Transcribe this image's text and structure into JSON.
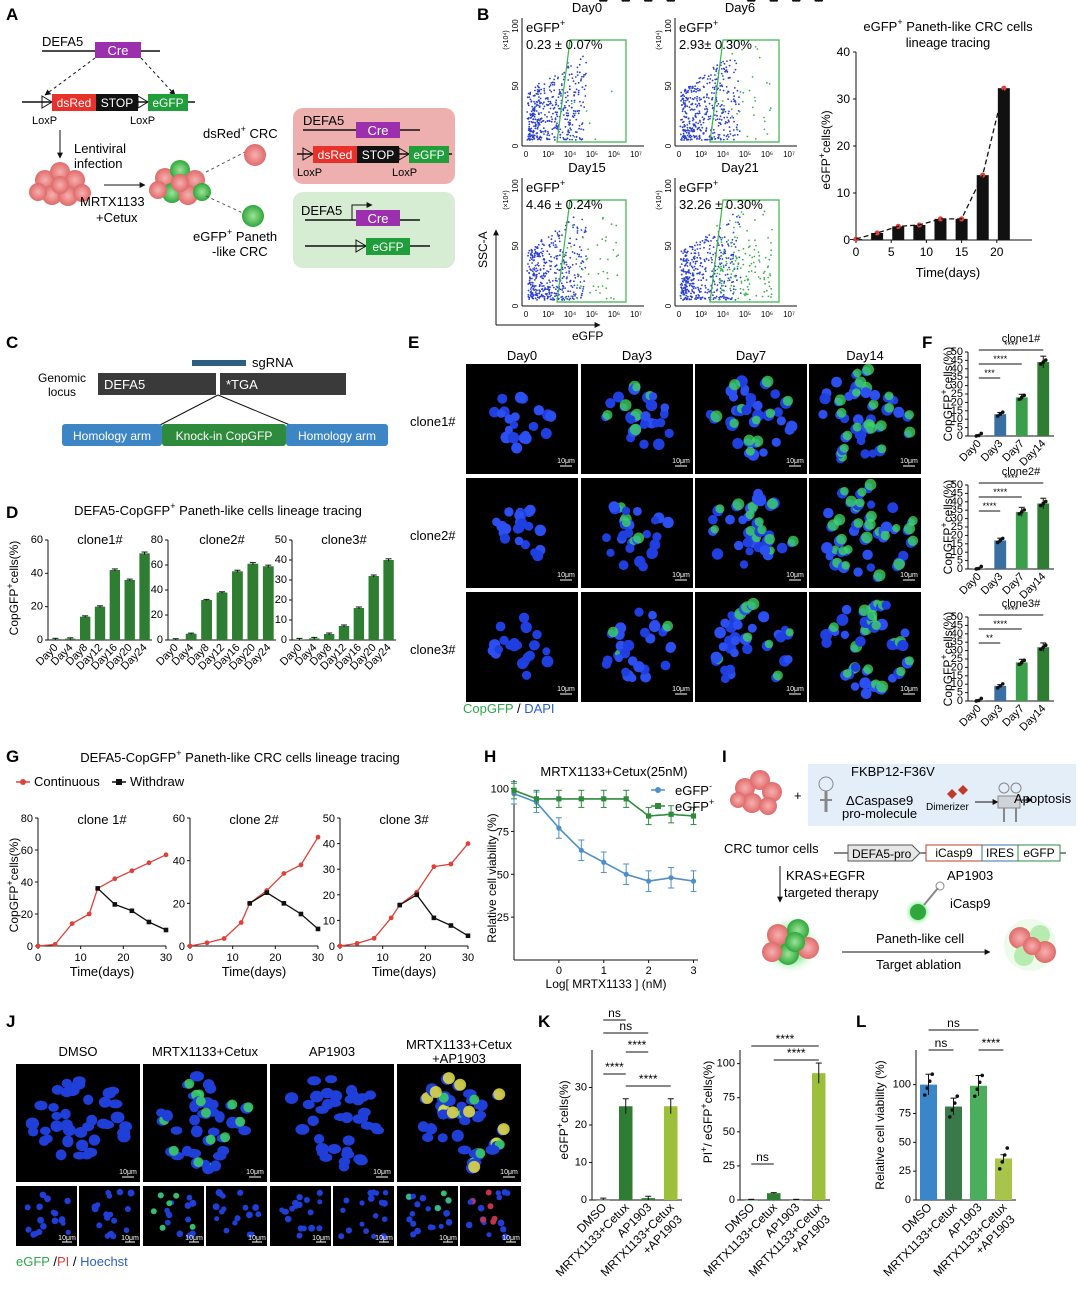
{
  "panels": {
    "A": "A",
    "B": "B",
    "C": "C",
    "D": "D",
    "E": "E",
    "F": "F",
    "G": "G",
    "H": "H",
    "I": "I",
    "J": "J",
    "K": "K",
    "L": "L"
  },
  "a": {
    "defa5": "DEFA5",
    "cre": "Cre",
    "dsred": "dsRed",
    "stop": "STOP",
    "egfp": "eGFP",
    "loxp": "LoxP",
    "lentiviral": "Lentiviral",
    "infection": "infection",
    "mrtx": "MRTX1133",
    "cetux": "+Cetux",
    "dsred_crc_a": "dsRed",
    "dsred_crc_sup": "+",
    "dsred_crc_b": " CRC",
    "egfp_paneth_a": "eGFP",
    "egfp_paneth_sup": "+",
    "egfp_paneth_b": " Paneth",
    "like_crc": "-like CRC",
    "box_red_defa5": "DEFA5",
    "box_green_defa5": "DEFA5"
  },
  "b": {
    "axis_y": "SSC-A",
    "axis_x": "eGFP",
    "scale": "(×10⁴)",
    "plots": [
      {
        "day": "Day0",
        "label": "eGFP",
        "sup": "+",
        "value": "0.23 ± 0.07%"
      },
      {
        "day": "Day6",
        "label": "eGFP",
        "sup": "+",
        "value": "2.93± 0.30%"
      },
      {
        "day": "Day15",
        "label": "eGFP",
        "sup": "+",
        "value": "4.46 ± 0.24%"
      },
      {
        "day": "Day21",
        "label": "eGFP",
        "sup": "+",
        "value": "32.26 ± 0.30%"
      }
    ],
    "yticks": [
      "0",
      "50",
      "100"
    ],
    "xticks": [
      "0",
      "10³",
      "10⁴",
      "10⁵",
      "10⁶",
      "10⁷"
    ],
    "chart_title_a": "eGFP",
    "chart_title_sup": "+",
    "chart_title_b": " Paneth-like CRC cells",
    "chart_title_c": "lineage tracing",
    "ylabel_a": "eGFP",
    "ylabel_sup": "+",
    "ylabel_b": "cells(%)",
    "xlabel": "Time(days)"
  },
  "c": {
    "sgrna": "sgRNA",
    "genomic": "Genomic",
    "locus": "locus",
    "defa5": "DEFA5",
    "tga": "*TGA",
    "arm": "Homology arm",
    "knockin": "Knock-in CopGFP"
  },
  "d": {
    "title_a": "DEFA5-CopGFP",
    "title_sup": "+",
    "title_b": " Paneth-like cells lineage tracing",
    "ylabel_a": "CopGFP",
    "ylabel_sup": "+",
    "ylabel_b": "cells(%)",
    "clones": [
      "clone1#",
      "clone2#",
      "clone3#"
    ]
  },
  "e": {
    "days": [
      "Day0",
      "Day3",
      "Day7",
      "Day14"
    ],
    "clones": [
      "clone1#",
      "clone2#",
      "clone3#"
    ],
    "scale": "10μm",
    "legend_a": "CopGFP",
    "legend_sep": " / ",
    "legend_b": "DAPI"
  },
  "f": {
    "ylabel_a": "CopGFP",
    "ylabel_sup": "+",
    "ylabel_b": "cells(%)"
  },
  "g": {
    "title_a": "DEFA5-CopGFP",
    "title_sup": "+",
    "title_b": " Paneth-like CRC cells lineage tracing",
    "legend_cont": "Continuous",
    "legend_with": "Withdraw",
    "ylabel_a": "CopGFP",
    "ylabel_sup": "+",
    "ylabel_b": "cells(%)",
    "xlabel": "Time(days)"
  },
  "h": {
    "title": "MRTX1133+Cetux(25nM)",
    "ylabel": "Relative cell viability (%)",
    "xlabel": "Log[ MRTX1133 ] (nM)",
    "legend_minus": "eGFP",
    "legend_minus_sup": "-",
    "legend_plus": "eGFP",
    "legend_plus_sup": "+"
  },
  "i": {
    "fkbp": "FKBP12-F36V",
    "casp": "ΔCaspase9",
    "promol": "pro-molecule",
    "dimerizer": "Dimerizer",
    "apoptosis": "Apoptosis",
    "crc": "CRC tumor cells",
    "defa5pro": "DEFA5-pro",
    "icasp9": "iCasp9",
    "ires": "IRES",
    "egfp": "eGFP",
    "kras": "KRAS+EGFR",
    "targeted": "targeted therapy",
    "ap1903": "AP1903",
    "icasp9b": "iCasp9",
    "paneth": "Paneth-like cell",
    "ablation": "Target ablation"
  },
  "j": {
    "conds": [
      "DMSO",
      "MRTX1133+Cetux",
      "AP1903"
    ],
    "cond4a": "MRTX1133+Cetux",
    "cond4b": "+AP1903",
    "scale": "10μm",
    "legend_a": "eGFP",
    "legend_sep1": " /",
    "legend_b": "PI",
    "legend_sep2": " /",
    "legend_c": " Hoechst"
  },
  "k": {
    "ylabel1_a": "eGFP",
    "ylabel1_sup": "+",
    "ylabel1_b": "cells(%)",
    "ylabel2_a": "PI",
    "ylabel2_sup1": "+",
    "ylabel2_b": "/ eGFP",
    "ylabel2_sup2": "+",
    "ylabel2_c": "cells(%)",
    "xcats": [
      "DMSO",
      "MRTX1133+Cetux",
      "AP1903",
      "MRTX1133+Cetux"
    ],
    "xcat4b": "+AP1903"
  },
  "l": {
    "ylabel": "Relative cell viability (%)",
    "xcats": [
      "DMSO",
      "MRTX1133+Cetux",
      "AP1903",
      "MRTX1133+Cetux"
    ],
    "xcat4b": "+AP1903"
  },
  "colors": {
    "red": "#e0403a",
    "green": "#2e7d32",
    "blue": "#3a7dbf",
    "lime": "#9cbf3c",
    "black": "#111111",
    "purple": "#9b2fae",
    "dsred": "#e8312a"
  },
  "chart_data": [
    {
      "id": "B",
      "type": "bar",
      "title": "eGFP+ Paneth-like CRC cells lineage tracing",
      "xlabel": "Time(days)",
      "ylabel": "eGFP+cells(%)",
      "x": [
        0,
        3,
        6,
        9,
        12,
        15,
        18,
        21
      ],
      "values": [
        0.2,
        1.5,
        2.9,
        3.2,
        4.5,
        4.5,
        13.8,
        32.3
      ],
      "xlim": [
        0,
        25
      ],
      "ylim": [
        0,
        40
      ],
      "xticks": [
        0,
        5,
        10,
        15,
        20
      ],
      "yticks": [
        0,
        10,
        20,
        30,
        40
      ],
      "trend": "dashed"
    },
    {
      "id": "D1",
      "type": "bar",
      "title": "clone1#",
      "categories": [
        "Day0",
        "Day4",
        "Day8",
        "Day12",
        "Day16",
        "Day20",
        "Day24"
      ],
      "values": [
        0.5,
        0.8,
        14,
        20,
        42,
        36,
        52
      ],
      "ylim": [
        0,
        60
      ],
      "yticks": [
        0,
        20,
        40,
        60
      ]
    },
    {
      "id": "D2",
      "type": "bar",
      "title": "clone2#",
      "categories": [
        "Day0",
        "Day4",
        "Day8",
        "Day12",
        "Day16",
        "Day20",
        "Day24"
      ],
      "values": [
        0.5,
        5,
        32,
        38,
        55,
        61,
        59
      ],
      "ylim": [
        0,
        80
      ],
      "yticks": [
        0,
        20,
        40,
        60,
        80
      ]
    },
    {
      "id": "D3",
      "type": "bar",
      "title": "clone3#",
      "categories": [
        "Day0",
        "Day4",
        "Day8",
        "Day12",
        "Day16",
        "Day20",
        "Day24"
      ],
      "values": [
        0.3,
        0.8,
        3,
        7,
        16,
        32,
        40
      ],
      "ylim": [
        0,
        50
      ],
      "yticks": [
        0,
        10,
        20,
        30,
        40,
        50
      ]
    },
    {
      "id": "F1",
      "type": "bar",
      "title": "clone1#",
      "categories": [
        "Day0",
        "Day3",
        "Day7",
        "Day14"
      ],
      "values": [
        0.3,
        13,
        23,
        44
      ],
      "colors": [
        "#3a6fa3",
        "#3a6fa3",
        "#3a9e4a",
        "#2e7d32"
      ],
      "ylim": [
        0,
        50
      ],
      "yticks": [
        0,
        5,
        10,
        15,
        20,
        25,
        30,
        35,
        40,
        45,
        50
      ],
      "significance": [
        {
          "a": 0,
          "b": 3,
          "label": "****"
        },
        {
          "a": 0,
          "b": 2,
          "label": "****"
        },
        {
          "a": 0,
          "b": 1,
          "label": "***"
        }
      ]
    },
    {
      "id": "F2",
      "type": "bar",
      "title": "clone2#",
      "categories": [
        "Day0",
        "Day3",
        "Day7",
        "Day14"
      ],
      "values": [
        0.3,
        17,
        34,
        39
      ],
      "colors": [
        "#3a6fa3",
        "#3a6fa3",
        "#3a9e4a",
        "#2e7d32"
      ],
      "ylim": [
        0,
        50
      ],
      "yticks": [
        0,
        5,
        10,
        15,
        20,
        25,
        30,
        35,
        40,
        45,
        50
      ],
      "significance": [
        {
          "a": 0,
          "b": 3,
          "label": "****"
        },
        {
          "a": 0,
          "b": 2,
          "label": "****"
        },
        {
          "a": 0,
          "b": 1,
          "label": "****"
        }
      ]
    },
    {
      "id": "F3",
      "type": "bar",
      "title": "clone3#",
      "categories": [
        "Day0",
        "Day3",
        "Day7",
        "Day14"
      ],
      "values": [
        0.3,
        9,
        23,
        32
      ],
      "colors": [
        "#3a6fa3",
        "#3a6fa3",
        "#3a9e4a",
        "#2e7d32"
      ],
      "ylim": [
        0,
        50
      ],
      "yticks": [
        0,
        5,
        10,
        15,
        20,
        25,
        30,
        35,
        40,
        45,
        50
      ],
      "significance": [
        {
          "a": 0,
          "b": 3,
          "label": "****"
        },
        {
          "a": 0,
          "b": 2,
          "label": "****"
        },
        {
          "a": 0,
          "b": 1,
          "label": "**"
        }
      ]
    },
    {
      "id": "G1",
      "type": "line",
      "title": "clone 1#",
      "xlim": [
        0,
        30
      ],
      "ylim": [
        0,
        80
      ],
      "xticks": [
        0,
        10,
        20,
        30
      ],
      "yticks": [
        0,
        20,
        40,
        60,
        80
      ],
      "series": [
        {
          "name": "Continuous",
          "x": [
            0,
            4,
            8,
            12,
            14,
            18,
            22,
            26,
            30
          ],
          "y": [
            0,
            1,
            14,
            20,
            36,
            42,
            47,
            52,
            57
          ]
        },
        {
          "name": "Withdraw",
          "x": [
            14,
            18,
            22,
            26,
            30
          ],
          "y": [
            36,
            26,
            22,
            15,
            10
          ]
        }
      ]
    },
    {
      "id": "G2",
      "type": "line",
      "title": "clone 2#",
      "xlim": [
        0,
        30
      ],
      "ylim": [
        0,
        60
      ],
      "xticks": [
        0,
        10,
        20,
        30
      ],
      "yticks": [
        0,
        20,
        40,
        60
      ],
      "series": [
        {
          "name": "Continuous",
          "x": [
            0,
            4,
            8,
            12,
            14,
            18,
            22,
            26,
            30
          ],
          "y": [
            0,
            1.5,
            3.5,
            11,
            20,
            26,
            34,
            38,
            51
          ]
        },
        {
          "name": "Withdraw",
          "x": [
            14,
            18,
            22,
            26,
            30
          ],
          "y": [
            20,
            25,
            20,
            15,
            8
          ]
        }
      ]
    },
    {
      "id": "G3",
      "type": "line",
      "title": "clone 3#",
      "xlim": [
        0,
        30
      ],
      "ylim": [
        0,
        50
      ],
      "xticks": [
        0,
        10,
        20,
        30
      ],
      "yticks": [
        0,
        10,
        20,
        30,
        40,
        50
      ],
      "series": [
        {
          "name": "Continuous",
          "x": [
            0,
            4,
            8,
            12,
            14,
            18,
            22,
            26,
            30
          ],
          "y": [
            0,
            1,
            3,
            11,
            16,
            21,
            31,
            32,
            40
          ]
        },
        {
          "name": "Withdraw",
          "x": [
            14,
            18,
            22,
            26,
            30
          ],
          "y": [
            16,
            20,
            11,
            8,
            4
          ]
        }
      ]
    },
    {
      "id": "H",
      "type": "line",
      "title": "MRTX1133+Cetux(25nM)",
      "xlabel": "Log[ MRTX1133 ] (nM)",
      "ylabel": "Relative cell viability (%)",
      "xlim": [
        -1,
        3.1
      ],
      "ylim": [
        0,
        105
      ],
      "xticks": [
        0,
        1,
        2,
        3
      ],
      "yticks": [
        25,
        50,
        75,
        100
      ],
      "series": [
        {
          "name": "eGFP-",
          "x": [
            -1,
            -0.5,
            0,
            0.5,
            1,
            1.5,
            2,
            2.5,
            3
          ],
          "y": [
            97,
            92,
            77,
            64,
            57,
            50,
            46,
            48,
            46
          ]
        },
        {
          "name": "eGFP+",
          "x": [
            -1,
            -0.5,
            0,
            0.5,
            1,
            1.5,
            2,
            2.5,
            3
          ],
          "y": [
            99,
            94,
            94,
            94,
            94,
            94,
            84,
            85,
            84
          ]
        }
      ]
    },
    {
      "id": "K1",
      "type": "bar",
      "categories": [
        "DMSO",
        "MRTX1133+Cetux",
        "AP1903",
        "MRTX1133+Cetux+AP1903"
      ],
      "values": [
        0,
        25,
        0.5,
        25
      ],
      "colors": [
        "#2e7d32",
        "#2e7d32",
        "#2e7d32",
        "#9cbf3c"
      ],
      "ylim": [
        0,
        40
      ],
      "yticks": [
        0,
        10,
        20,
        30
      ],
      "significance": [
        {
          "label": "****"
        },
        {
          "label": "ns"
        },
        {
          "label": "****"
        },
        {
          "label": "****"
        },
        {
          "label": "ns"
        }
      ]
    },
    {
      "id": "K2",
      "type": "bar",
      "categories": [
        "DMSO",
        "MRTX1133+Cetux",
        "AP1903",
        "MRTX1133+Cetux+AP1903"
      ],
      "values": [
        0,
        5,
        0,
        93
      ],
      "colors": [
        "#2e7d32",
        "#2e7d32",
        "#2e7d32",
        "#9cbf3c"
      ],
      "ylim": [
        0,
        110
      ],
      "yticks": [
        0,
        25,
        50,
        75,
        100
      ],
      "significance": [
        {
          "label": "****"
        },
        {
          "label": "****"
        },
        {
          "label": "ns"
        }
      ]
    },
    {
      "id": "L",
      "type": "bar",
      "categories": [
        "DMSO",
        "MRTX1133+Cetux",
        "AP1903",
        "MRTX1133+Cetux+AP1903"
      ],
      "values": [
        100,
        81,
        99,
        36
      ],
      "colors": [
        "#3a86c8",
        "#3a7a4a",
        "#4cae5c",
        "#a9c44a"
      ],
      "ylim": [
        0,
        130
      ],
      "yticks": [
        0,
        25,
        50,
        75,
        100
      ],
      "significance": [
        {
          "label": "ns"
        },
        {
          "label": "ns"
        },
        {
          "label": "****"
        }
      ]
    }
  ]
}
